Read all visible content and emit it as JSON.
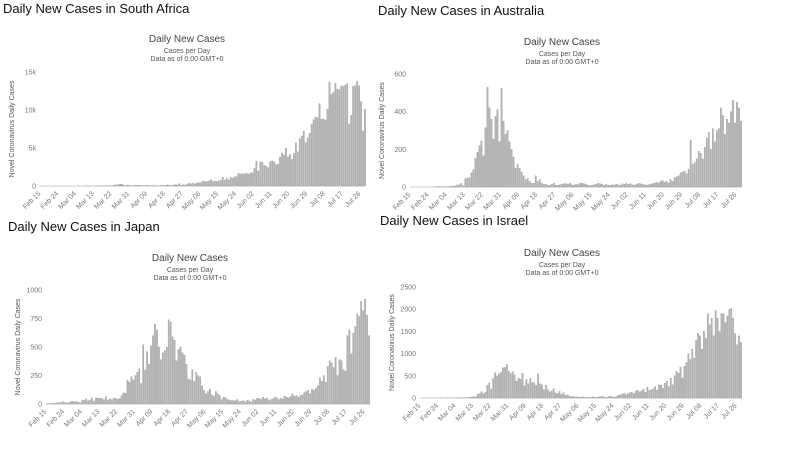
{
  "chart_data": [
    {
      "type": "bar",
      "heading": "Daily New Cases in South Africa",
      "title": "Daily New Cases",
      "subtitle": "Cases per Day",
      "note": "Data as of 0:00 GMT+0",
      "y_label": "Novel Coronavirus Daily Cases",
      "color": "#b4b4b4",
      "ylim": [
        0,
        15000
      ],
      "yticks": [
        0,
        {
          "value": 5000,
          "label": "5k"
        },
        {
          "value": 10000,
          "label": "10k"
        },
        {
          "value": 15000,
          "label": "15k"
        }
      ],
      "grid": false,
      "categories": [
        "Feb 15",
        null,
        null,
        null,
        null,
        null,
        null,
        null,
        null,
        "Feb 24",
        null,
        null,
        null,
        null,
        null,
        null,
        null,
        null,
        "Mar 04",
        null,
        null,
        null,
        null,
        null,
        null,
        null,
        null,
        "Mar 13",
        null,
        null,
        null,
        null,
        null,
        null,
        null,
        null,
        "Mar 22",
        null,
        null,
        null,
        null,
        null,
        null,
        null,
        null,
        "Mar 31",
        null,
        null,
        null,
        null,
        null,
        null,
        null,
        null,
        "Apr 09",
        null,
        null,
        null,
        null,
        null,
        null,
        null,
        null,
        "Apr 18",
        null,
        null,
        null,
        null,
        null,
        null,
        null,
        null,
        "Apr 27",
        null,
        null,
        null,
        null,
        null,
        null,
        null,
        null,
        "May 06",
        null,
        null,
        null,
        null,
        null,
        null,
        null,
        null,
        "May 15",
        null,
        null,
        null,
        null,
        null,
        null,
        null,
        null,
        "May 24",
        null,
        null,
        null,
        null,
        null,
        null,
        null,
        null,
        "Jun 02",
        null,
        null,
        null,
        null,
        null,
        null,
        null,
        null,
        "Jun 11",
        null,
        null,
        null,
        null,
        null,
        null,
        null,
        null,
        "Jun 20",
        null,
        null,
        null,
        null,
        null,
        null,
        null,
        null,
        "Jun 29",
        null,
        null,
        null,
        null,
        null,
        null,
        null,
        null,
        "Jul 08",
        null,
        null,
        null,
        null,
        null,
        null,
        null,
        null,
        "Jul 17",
        null,
        null,
        null,
        null,
        null,
        null,
        null,
        null,
        "Jul 26",
        null,
        null
      ],
      "values": [
        0,
        0,
        0,
        0,
        0,
        0,
        0,
        0,
        0,
        0,
        0,
        0,
        0,
        0,
        0,
        0,
        0,
        0,
        0,
        1,
        0,
        0,
        1,
        6,
        3,
        3,
        0,
        11,
        14,
        10,
        23,
        16,
        31,
        34,
        52,
        38,
        34,
        128,
        152,
        155,
        218,
        243,
        102,
        63,
        148,
        27,
        27,
        82,
        113,
        77,
        99,
        56,
        63,
        64,
        96,
        55,
        32,
        80,
        58,
        17,
        34,
        99,
        51,
        91,
        143,
        111,
        50,
        133,
        179,
        146,
        318,
        88,
        188,
        139,
        266,
        354,
        297,
        385,
        267,
        443,
        437,
        424,
        663,
        574,
        595,
        665,
        818,
        610,
        641,
        611,
        665,
        785,
        1160,
        767,
        1026,
        803,
        1134,
        1041,
        1218,
        1240,
        1673,
        1567,
        1637,
        1556,
        1716,
        1555,
        1716,
        1728,
        2312,
        3267,
        1974,
        3157,
        3147,
        2719,
        2594,
        2430,
        3209,
        3298,
        3214,
        2828,
        2849,
        3809,
        4302,
        4078,
        4966,
        3826,
        4174,
        3519,
        4288,
        5668,
        4516,
        6215,
        6579,
        7210,
        5688,
        6334,
        6945,
        8124,
        8728,
        9063,
        8971,
        10853,
        8773,
        8810,
        8685,
        10114,
        13674,
        12058,
        12348,
        13497,
        12757,
        12692,
        13172,
        13104,
        13285,
        13449,
        8170,
        9300,
        13150,
        13218,
        13800,
        13215,
        11107,
        7232,
        10107
      ]
    },
    {
      "type": "bar",
      "heading": "Daily New Cases in Australia",
      "title": "Daily New Cases",
      "subtitle": "Cases per Day",
      "note": "Data as of 0:00 GMT+0",
      "y_label": "Novel Coronavirus Daily Cases",
      "color": "#b4b4b4",
      "ylim": [
        0,
        600
      ],
      "yticks": [
        0,
        200,
        400,
        600
      ],
      "grid": false,
      "categories": [
        "Feb 15",
        null,
        null,
        null,
        null,
        null,
        null,
        null,
        null,
        "Feb 24",
        null,
        null,
        null,
        null,
        null,
        null,
        null,
        null,
        "Mar 04",
        null,
        null,
        null,
        null,
        null,
        null,
        null,
        null,
        "Mar 13",
        null,
        null,
        null,
        null,
        null,
        null,
        null,
        null,
        "Mar 22",
        null,
        null,
        null,
        null,
        null,
        null,
        null,
        null,
        "Mar 31",
        null,
        null,
        null,
        null,
        null,
        null,
        null,
        null,
        "Apr 09",
        null,
        null,
        null,
        null,
        null,
        null,
        null,
        null,
        "Apr 18",
        null,
        null,
        null,
        null,
        null,
        null,
        null,
        null,
        "Apr 27",
        null,
        null,
        null,
        null,
        null,
        null,
        null,
        null,
        "May 06",
        null,
        null,
        null,
        null,
        null,
        null,
        null,
        null,
        "May 15",
        null,
        null,
        null,
        null,
        null,
        null,
        null,
        null,
        "May 24",
        null,
        null,
        null,
        null,
        null,
        null,
        null,
        null,
        "Jun 02",
        null,
        null,
        null,
        null,
        null,
        null,
        null,
        null,
        "Jun 11",
        null,
        null,
        null,
        null,
        null,
        null,
        null,
        null,
        "Jun 20",
        null,
        null,
        null,
        null,
        null,
        null,
        null,
        null,
        "Jun 29",
        null,
        null,
        null,
        null,
        null,
        null,
        null,
        null,
        "Jul 08",
        null,
        null,
        null,
        null,
        null,
        null,
        null,
        null,
        "Jul 17",
        null,
        null,
        null,
        null,
        null,
        null,
        null,
        null,
        "Jul 26",
        null,
        null
      ],
      "values": [
        0,
        0,
        0,
        0,
        0,
        0,
        0,
        0,
        0,
        0,
        0,
        0,
        2,
        2,
        2,
        2,
        1,
        1,
        2,
        3,
        5,
        4,
        6,
        11,
        12,
        20,
        6,
        44,
        48,
        49,
        75,
        92,
        152,
        185,
        220,
        245,
        165,
        315,
        530,
        420,
        360,
        255,
        375,
        410,
        240,
        525,
        350,
        280,
        300,
        240,
        200,
        160,
        100,
        120,
        100,
        80,
        60,
        40,
        45,
        30,
        20,
        20,
        60,
        30,
        40,
        20,
        15,
        15,
        10,
        10,
        15,
        20,
        10,
        10,
        12,
        15,
        18,
        18,
        15,
        20,
        12,
        10,
        15,
        12,
        20,
        20,
        18,
        15,
        10,
        8,
        10,
        12,
        15,
        20,
        18,
        15,
        10,
        15,
        10,
        10,
        12,
        10,
        15,
        12,
        10,
        18,
        15,
        20,
        15,
        18,
        12,
        10,
        15,
        20,
        18,
        15,
        12,
        10,
        12,
        15,
        18,
        20,
        25,
        20,
        30,
        35,
        25,
        30,
        20,
        40,
        30,
        50,
        55,
        60,
        75,
        80,
        85,
        70,
        95,
        250,
        120,
        130,
        150,
        190,
        180,
        150,
        210,
        260,
        290,
        200,
        310,
        240,
        300,
        310,
        420,
        380,
        280,
        360,
        340,
        400,
        460,
        340,
        450,
        420,
        350
      ]
    },
    {
      "type": "bar",
      "heading": "Daily New Cases in Japan",
      "title": "Daily New Cases",
      "subtitle": "Cases per Day",
      "note": "Data as of 0:00 GMT+0",
      "y_label": "Novel Coronavirus Daily Cases",
      "color": "#b4b4b4",
      "ylim": [
        0,
        1000
      ],
      "yticks": [
        0,
        250,
        500,
        750,
        1000
      ],
      "grid": false,
      "categories": [
        "Feb 15",
        null,
        null,
        null,
        null,
        null,
        null,
        null,
        null,
        "Feb 24",
        null,
        null,
        null,
        null,
        null,
        null,
        null,
        null,
        "Mar 04",
        null,
        null,
        null,
        null,
        null,
        null,
        null,
        null,
        "Mar 13",
        null,
        null,
        null,
        null,
        null,
        null,
        null,
        null,
        "Mar 22",
        null,
        null,
        null,
        null,
        null,
        null,
        null,
        null,
        "Mar 31",
        null,
        null,
        null,
        null,
        null,
        null,
        null,
        null,
        "Apr 09",
        null,
        null,
        null,
        null,
        null,
        null,
        null,
        null,
        "Apr 18",
        null,
        null,
        null,
        null,
        null,
        null,
        null,
        null,
        "Apr 27",
        null,
        null,
        null,
        null,
        null,
        null,
        null,
        null,
        "May 06",
        null,
        null,
        null,
        null,
        null,
        null,
        null,
        null,
        "May 15",
        null,
        null,
        null,
        null,
        null,
        null,
        null,
        null,
        "May 24",
        null,
        null,
        null,
        null,
        null,
        null,
        null,
        null,
        "Jun 02",
        null,
        null,
        null,
        null,
        null,
        null,
        null,
        null,
        "Jun 11",
        null,
        null,
        null,
        null,
        null,
        null,
        null,
        null,
        "Jun 20",
        null,
        null,
        null,
        null,
        null,
        null,
        null,
        null,
        "Jun 29",
        null,
        null,
        null,
        null,
        null,
        null,
        null,
        null,
        "Jul 08",
        null,
        null,
        null,
        null,
        null,
        null,
        null,
        null,
        "Jul 17",
        null,
        null,
        null,
        null,
        null,
        null,
        null,
        null,
        "Jul 26",
        null,
        null
      ],
      "values": [
        2,
        3,
        5,
        4,
        6,
        10,
        15,
        12,
        22,
        14,
        8,
        11,
        20,
        25,
        16,
        23,
        15,
        12,
        33,
        33,
        45,
        29,
        36,
        54,
        26,
        54,
        51,
        52,
        48,
        39,
        63,
        35,
        46,
        39,
        51,
        50,
        43,
        48,
        74,
        100,
        95,
        210,
        190,
        240,
        210,
        250,
        280,
        310,
        180,
        520,
        300,
        460,
        350,
        510,
        600,
        700,
        650,
        500,
        390,
        450,
        470,
        500,
        740,
        720,
        590,
        560,
        380,
        480,
        500,
        450,
        430,
        350,
        220,
        210,
        300,
        200,
        280,
        250,
        240,
        160,
        120,
        90,
        110,
        130,
        80,
        70,
        110,
        90,
        75,
        40,
        60,
        55,
        40,
        35,
        30,
        30,
        28,
        40,
        20,
        25,
        30,
        20,
        35,
        28,
        20,
        40,
        36,
        50,
        50,
        40,
        60,
        45,
        50,
        35,
        40,
        45,
        60,
        55,
        40,
        50,
        45,
        70,
        60,
        55,
        65,
        90,
        70,
        75,
        60,
        75,
        80,
        100,
        110,
        120,
        90,
        130,
        120,
        140,
        160,
        230,
        200,
        250,
        190,
        330,
        380,
        360,
        320,
        410,
        250,
        390,
        380,
        300,
        290,
        600,
        650,
        440,
        620,
        680,
        790,
        770,
        900,
        820,
        920,
        780,
        600
      ]
    },
    {
      "type": "bar",
      "heading": "Daily New Cases in Israel",
      "title": "Daily New Cases",
      "subtitle": "Cases per Day",
      "note": "Data as of 0:00 GMT+0",
      "y_label": "Novel Coronavirus Daily Cases",
      "color": "#b4b4b4",
      "ylim": [
        0,
        2500
      ],
      "yticks": [
        0,
        500,
        1000,
        1500,
        2000,
        2500
      ],
      "grid": false,
      "categories": [
        "Feb 15",
        null,
        null,
        null,
        null,
        null,
        null,
        null,
        null,
        "Feb 24",
        null,
        null,
        null,
        null,
        null,
        null,
        null,
        null,
        "Mar 04",
        null,
        null,
        null,
        null,
        null,
        null,
        null,
        null,
        "Mar 13",
        null,
        null,
        null,
        null,
        null,
        null,
        null,
        null,
        "Mar 22",
        null,
        null,
        null,
        null,
        null,
        null,
        null,
        null,
        "Mar 31",
        null,
        null,
        null,
        null,
        null,
        null,
        null,
        null,
        "Apr 09",
        null,
        null,
        null,
        null,
        null,
        null,
        null,
        null,
        "Apr 18",
        null,
        null,
        null,
        null,
        null,
        null,
        null,
        null,
        "Apr 27",
        null,
        null,
        null,
        null,
        null,
        null,
        null,
        null,
        "May 06",
        null,
        null,
        null,
        null,
        null,
        null,
        null,
        null,
        "May 15",
        null,
        null,
        null,
        null,
        null,
        null,
        null,
        null,
        "May 24",
        null,
        null,
        null,
        null,
        null,
        null,
        null,
        null,
        "Jun 02",
        null,
        null,
        null,
        null,
        null,
        null,
        null,
        null,
        "Jun 11",
        null,
        null,
        null,
        null,
        null,
        null,
        null,
        null,
        "Jun 20",
        null,
        null,
        null,
        null,
        null,
        null,
        null,
        null,
        "Jun 29",
        null,
        null,
        null,
        null,
        null,
        null,
        null,
        null,
        "Jul 08",
        null,
        null,
        null,
        null,
        null,
        null,
        null,
        null,
        "Jul 17",
        null,
        null,
        null,
        null,
        null,
        null,
        null,
        null,
        "Jul 26",
        null,
        null
      ],
      "values": [
        0,
        0,
        0,
        0,
        0,
        0,
        0,
        0,
        0,
        0,
        1,
        1,
        0,
        1,
        2,
        3,
        2,
        0,
        3,
        5,
        2,
        5,
        4,
        7,
        11,
        15,
        25,
        33,
        23,
        80,
        100,
        140,
        100,
        130,
        290,
        340,
        200,
        440,
        570,
        500,
        540,
        580,
        680,
        690,
        750,
        600,
        550,
        590,
        520,
        380,
        450,
        420,
        560,
        280,
        420,
        320,
        440,
        350,
        350,
        290,
        550,
        320,
        300,
        190,
        290,
        190,
        140,
        160,
        210,
        120,
        100,
        150,
        80,
        120,
        60,
        70,
        50,
        30,
        40,
        20,
        30,
        20,
        15,
        25,
        15,
        10,
        20,
        15,
        30,
        20,
        15,
        30,
        25,
        40,
        20,
        15,
        30,
        40,
        25,
        20,
        30,
        60,
        70,
        90,
        110,
        80,
        100,
        120,
        130,
        100,
        150,
        180,
        140,
        160,
        200,
        130,
        240,
        170,
        190,
        210,
        260,
        180,
        300,
        290,
        220,
        330,
        380,
        260,
        450,
        300,
        500,
        600,
        560,
        700,
        450,
        720,
        800,
        1000,
        870,
        1100,
        900,
        1300,
        1460,
        1400,
        1100,
        1500,
        1350,
        1900,
        1650,
        1800,
        1400,
        1970,
        1800,
        1500,
        1900,
        1900,
        1700,
        1850,
        2000,
        2020,
        1800,
        1450,
        1200,
        1400,
        1250
      ]
    }
  ]
}
